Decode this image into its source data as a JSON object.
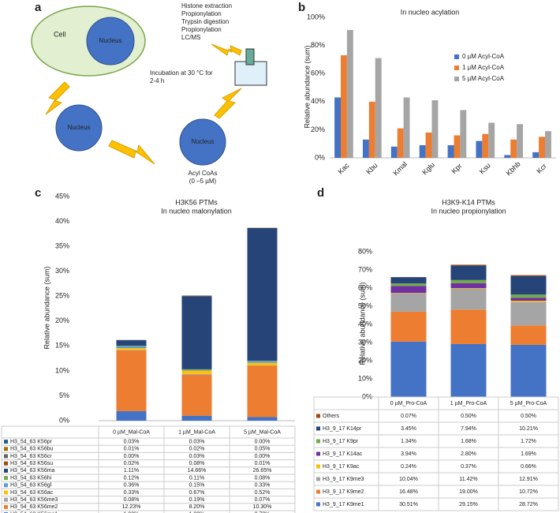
{
  "diagram": {
    "panel": "a",
    "cell": "Cell",
    "nuclei": [
      "Nucleus",
      "Nucleus",
      "Nucleus"
    ],
    "acyl": [
      "Acyl CoAs",
      "(0 –5 µM)"
    ],
    "incubation": [
      "Incubation at 30 °C for",
      "2-4 h"
    ],
    "steps": [
      "Histone extraction",
      "Propionylation",
      "Trypsin digestion",
      "Propionylation",
      "LC/MS"
    ]
  },
  "chart_data": [
    {
      "type": "bar",
      "panel": "b",
      "title": "In nucleo acylation",
      "y_label": "Relative abundance (sum)",
      "categories": [
        "Kac",
        "Kbu",
        "Kmal",
        "Kglu",
        "Kpr",
        "Ksu",
        "Kbhb",
        "Kcr"
      ],
      "series": [
        {
          "name": "0 µM Acyl-CoA",
          "color": "#4472c4",
          "values": [
            43,
            13,
            8,
            9,
            9,
            12,
            2,
            4
          ]
        },
        {
          "name": "1 µM Acyl-CoA",
          "color": "#ed7d31",
          "values": [
            73,
            40,
            21,
            18,
            16,
            17,
            13,
            15
          ]
        },
        {
          "name": "5 µM Acyl-CoA",
          "color": "#a5a5a5",
          "values": [
            91,
            71,
            43,
            41,
            34,
            25,
            24,
            19
          ]
        }
      ],
      "ylim": [
        0,
        100
      ],
      "yticks": [
        {
          "value": 0,
          "label": "0%"
        },
        {
          "value": 20,
          "label": "20%"
        },
        {
          "value": 40,
          "label": "40%"
        },
        {
          "value": 60,
          "label": "60%"
        },
        {
          "value": 80,
          "label": "80%"
        },
        {
          "value": 100,
          "label": "100%"
        }
      ]
    },
    {
      "type": "stacked_bar",
      "panel": "c",
      "title": "H3K56 PTMs",
      "subtitle": "In nucleo malonylation",
      "y_label": "Relative abundance (sum)",
      "categories": [
        "0 µM_Mal-CoA",
        "1 µM_Mal-CoA",
        "5 µM_Mal-CoA"
      ],
      "series": [
        {
          "name": "H3_54_63 K56me1",
          "color": "#4472c4",
          "values": [
            1.92,
            1.0,
            0.72
          ],
          "value_labels": [
            "1.92%",
            "1.00%",
            "0.72%"
          ]
        },
        {
          "name": "H3_54_63 K56me2",
          "color": "#ed7d31",
          "values": [
            12.23,
            8.2,
            10.3
          ],
          "value_labels": [
            "12.23%",
            "8.20%",
            "10.30%"
          ]
        },
        {
          "name": "H3_54_63 K56me3",
          "color": "#a5a5a5",
          "values": [
            0.08,
            0.19,
            0.07
          ],
          "value_labels": [
            "0.08%",
            "0.19%",
            "0.07%"
          ]
        },
        {
          "name": "H3_54_63 K56ac",
          "color": "#ffc000",
          "values": [
            0.33,
            0.67,
            0.52
          ],
          "value_labels": [
            "0.33%",
            "0.67%",
            "0.52%"
          ]
        },
        {
          "name": "H3_54_63 K56gl",
          "color": "#5b9bd5",
          "values": [
            0.36,
            0.15,
            0.33
          ],
          "value_labels": [
            "0.36%",
            "0.15%",
            "0.33%"
          ]
        },
        {
          "name": "H3_54_63 K56hi",
          "color": "#70ad47",
          "values": [
            0.12,
            0.11,
            0.08
          ],
          "value_labels": [
            "0.12%",
            "0.11%",
            "0.08%"
          ]
        },
        {
          "name": "H3_54_63 K56ma",
          "color": "#264478",
          "values": [
            1.11,
            14.66,
            26.65
          ],
          "value_labels": [
            "1.11%",
            "14.66%",
            "26.65%"
          ]
        },
        {
          "name": "H3_54_63 K56su",
          "color": "#9e480e",
          "values": [
            0.02,
            0.08,
            0.01
          ],
          "value_labels": [
            "0.02%",
            "0.08%",
            "0.01%"
          ]
        },
        {
          "name": "H3_54_63 K56cr",
          "color": "#636363",
          "values": [
            0.0,
            0.03,
            0.0
          ],
          "value_labels": [
            "0.00%",
            "0.03%",
            "0.00%"
          ]
        },
        {
          "name": "H3_54_63 K56bu",
          "color": "#997300",
          "values": [
            0.01,
            0.02,
            0.05
          ],
          "value_labels": [
            "0.01%",
            "0.02%",
            "0.05%"
          ]
        },
        {
          "name": "H3_54_63 K56pr",
          "color": "#255e91",
          "values": [
            0.03,
            0.03,
            0.0
          ],
          "value_labels": [
            "0.03%",
            "0.03%",
            "0.00%"
          ]
        }
      ],
      "ylim": [
        0,
        45
      ],
      "yticks": [
        {
          "value": 0,
          "label": "0%"
        },
        {
          "value": 5,
          "label": "5%"
        },
        {
          "value": 10,
          "label": "10%"
        },
        {
          "value": 15,
          "label": "15%"
        },
        {
          "value": 20,
          "label": "20%"
        },
        {
          "value": 25,
          "label": "25%"
        },
        {
          "value": 30,
          "label": "30%"
        },
        {
          "value": 35,
          "label": "35%"
        },
        {
          "value": 40,
          "label": "40%"
        },
        {
          "value": 45,
          "label": "45%"
        }
      ]
    },
    {
      "type": "stacked_bar",
      "panel": "d",
      "title": "H3K9-K14 PTMs",
      "subtitle": "In nucleo propionylation",
      "y_label": "Relative abundance (sum)",
      "categories": [
        "0 µM_Pro-CoA",
        "1 µM_Pro-CoA",
        "5 µM_Pro-CoA"
      ],
      "series": [
        {
          "name": "H3_9_17 K9me1",
          "color": "#4472c4",
          "values": [
            30.51,
            29.15,
            28.72
          ],
          "value_labels": [
            "30.51%",
            "29.15%",
            "28.72%"
          ]
        },
        {
          "name": "H3_9_17 K9me2",
          "color": "#ed7d31",
          "values": [
            16.48,
            19.0,
            10.72
          ],
          "value_labels": [
            "16.48%",
            "19.00%",
            "10.72%"
          ]
        },
        {
          "name": "H3_9_17 K9me3",
          "color": "#a5a5a5",
          "values": [
            10.04,
            11.42,
            12.91
          ],
          "value_labels": [
            "10.04%",
            "11.42%",
            "12.91%"
          ]
        },
        {
          "name": "H3_9_17 K9ac",
          "color": "#ffc000",
          "values": [
            0.24,
            0.37,
            0.66
          ],
          "value_labels": [
            "0.24%",
            "0.37%",
            "0.66%"
          ]
        },
        {
          "name": "H3_9_17 K14ac",
          "color": "#7030a0",
          "values": [
            3.94,
            2.8,
            1.69
          ],
          "value_labels": [
            "3.94%",
            "2.80%",
            "1.69%"
          ]
        },
        {
          "name": "H3_9_17 K9pr",
          "color": "#70ad47",
          "values": [
            1.34,
            1.68,
            1.72
          ],
          "value_labels": [
            "1.34%",
            "1.68%",
            "1.72%"
          ]
        },
        {
          "name": "H3_9_17 K14pr",
          "color": "#264478",
          "values": [
            3.45,
            7.94,
            10.21
          ],
          "value_labels": [
            "3.45%",
            "7.94%",
            "10.21%"
          ]
        },
        {
          "name": "Others",
          "color": "#9e480e",
          "values": [
            0.07,
            0.5,
            0.5
          ],
          "value_labels": [
            "0.07%",
            "0.50%",
            "0.50%"
          ]
        }
      ],
      "ylim": [
        0,
        80
      ],
      "yticks": [
        {
          "value": 0,
          "label": "0%"
        },
        {
          "value": 10,
          "label": "10%"
        },
        {
          "value": 20,
          "label": "20%"
        },
        {
          "value": 30,
          "label": "30%"
        },
        {
          "value": 40,
          "label": "40%"
        },
        {
          "value": 50,
          "label": "50%"
        },
        {
          "value": 60,
          "label": "60%"
        },
        {
          "value": 70,
          "label": "70%"
        },
        {
          "value": 80,
          "label": "80%"
        }
      ]
    }
  ]
}
